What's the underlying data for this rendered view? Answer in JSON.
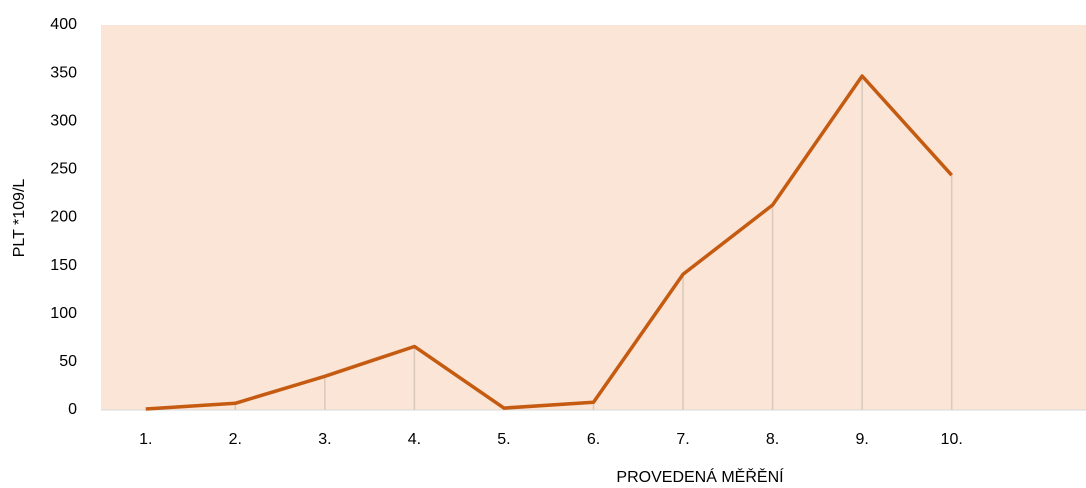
{
  "chart_data": {
    "type": "line",
    "xlabel": "PROVEDENÁ MĚŘĚNÍ",
    "ylabel": "PLT *109/L",
    "categories": [
      "1.",
      "2.",
      "3.",
      "4.",
      "5.",
      "6.",
      "7.",
      "8.",
      "9.",
      "10.",
      null
    ],
    "series": [
      {
        "color": "#c55a11",
        "values": [
          1,
          7,
          35,
          66,
          2,
          8,
          141,
          213,
          347,
          244,
          null
        ]
      }
    ],
    "ylim": [
      0,
      400
    ],
    "yticks": [
      0,
      50,
      100,
      150,
      200,
      250,
      300,
      350,
      400
    ],
    "drop_lines": true,
    "background": "#fbe5d6"
  }
}
